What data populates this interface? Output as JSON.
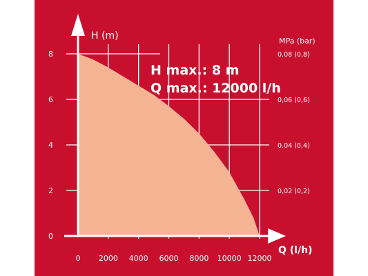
{
  "chart_data": {
    "type": "area",
    "xlabel": "Q (l/h)",
    "ylabel": "H (m)",
    "y2label": "MPa (bar)",
    "x_ticks": [
      "0",
      "2000",
      "4000",
      "6000",
      "8000",
      "10000",
      "12000"
    ],
    "y_ticks": [
      "0",
      "2",
      "4",
      "6",
      "8"
    ],
    "y2_ticks": [
      "0,02 (0,2)",
      "0,04 (0,4)",
      "0,06 (0,6)",
      "0,08 (0,8)"
    ],
    "annotation": [
      "H max.: 8 m",
      "Q max.: 12000 l/h"
    ],
    "x": [
      0,
      1000,
      2000,
      3000,
      4000,
      5000,
      6000,
      7000,
      8000,
      9000,
      10000,
      11000,
      11600,
      12000
    ],
    "y": [
      8.0,
      7.75,
      7.4,
      7.0,
      6.6,
      6.2,
      5.7,
      5.15,
      4.5,
      3.7,
      2.8,
      1.6,
      0.8,
      0.0
    ],
    "xlim": [
      0,
      12000
    ],
    "ylim": [
      0,
      8
    ],
    "grid": true,
    "colors": {
      "background": "#c8102e",
      "fill": "#f4b494",
      "foreground": "#ffffff"
    }
  }
}
